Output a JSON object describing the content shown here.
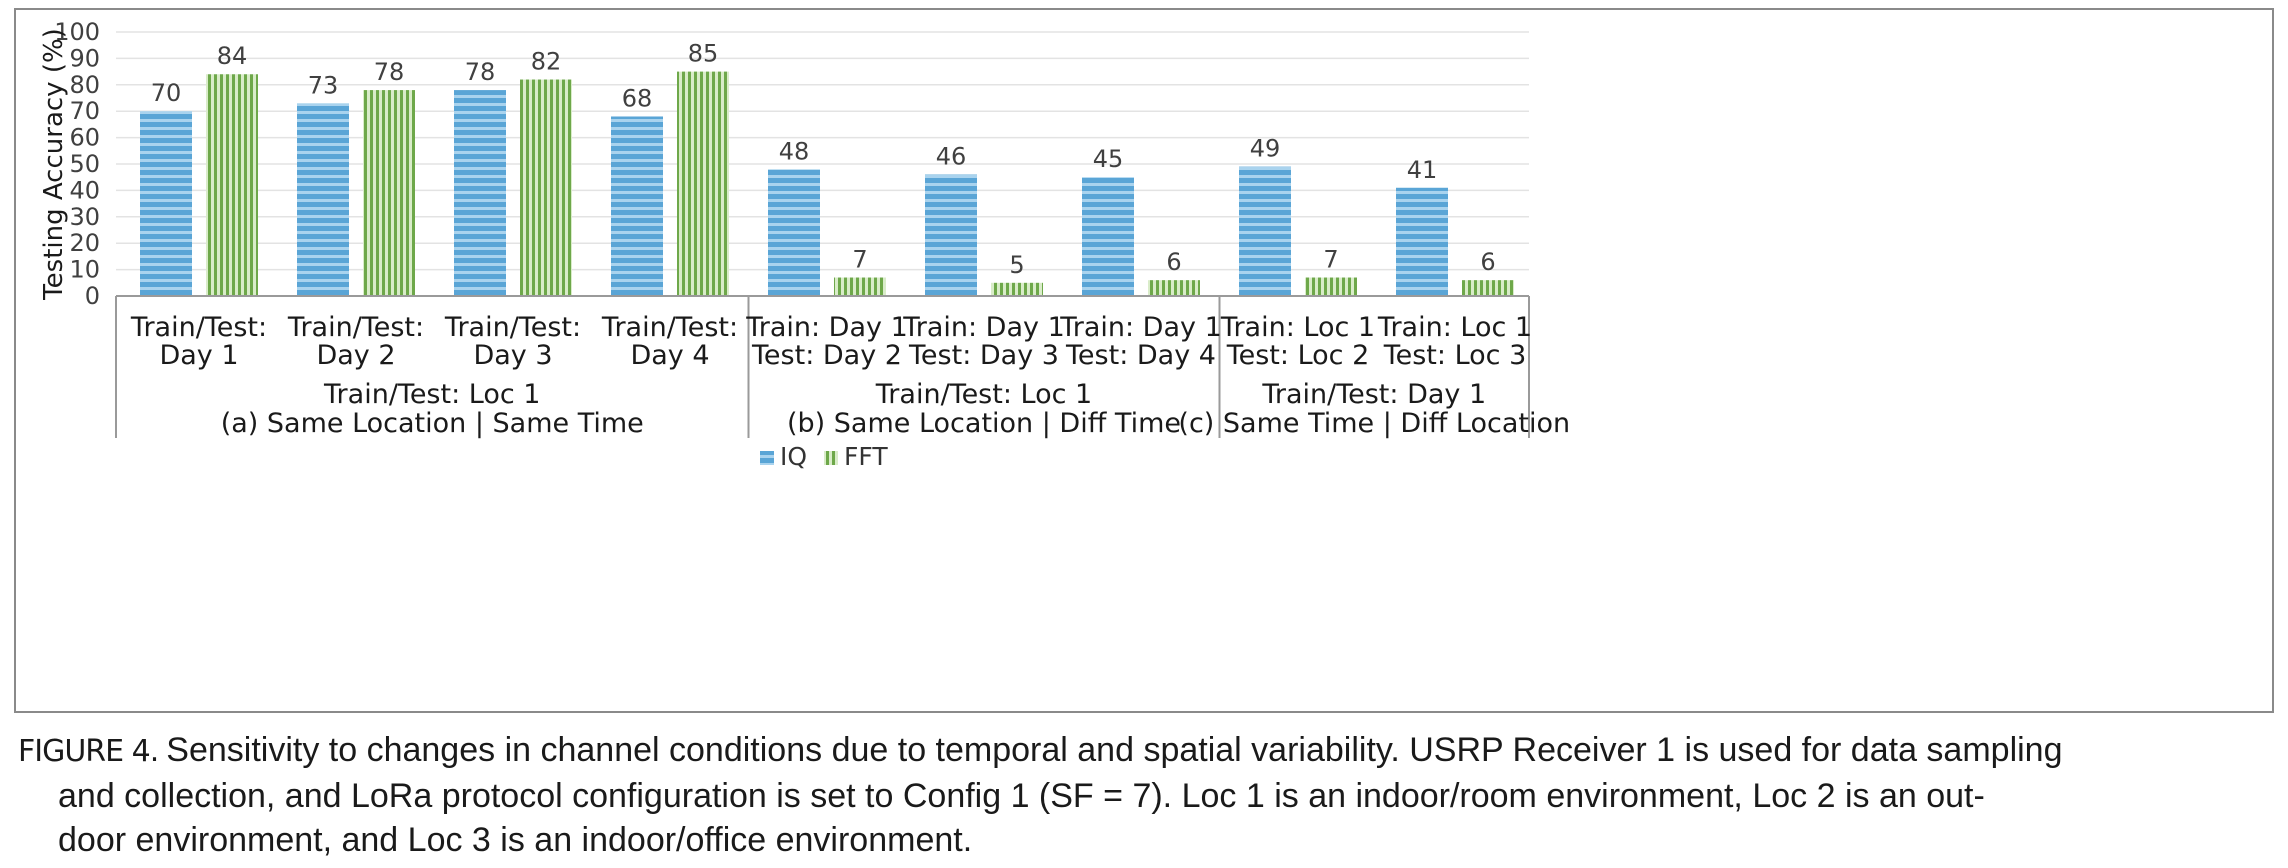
{
  "caption": {
    "label": "FIGURE 4.",
    "line1": "Sensitivity to changes in channel conditions due to temporal and spatial variability. USRP Receiver 1 is used for data sampling",
    "line2": "and collection, and LoRa protocol configuration is set to Config 1 (SF = 7). Loc 1 is an indoor/room environment, Loc 2 is an out-",
    "line3": "door environment, and Loc 3 is an indoor/office environment."
  },
  "chart_data": {
    "type": "bar",
    "ylabel": "Testing Accuracy (%)",
    "xlabel": "",
    "ylim": [
      0,
      100
    ],
    "yticks": [
      0,
      10,
      20,
      30,
      40,
      50,
      60,
      70,
      80,
      90,
      100
    ],
    "grid": true,
    "legend": "bottom-center",
    "categories": [
      [
        "Train/Test:",
        "Day 1"
      ],
      [
        "Train/Test:",
        "Day 2"
      ],
      [
        "Train/Test:",
        "Day 3"
      ],
      [
        "Train/Test:",
        "Day 4"
      ],
      [
        "Train: Day 1",
        "Test: Day 2"
      ],
      [
        "Train: Day 1",
        "Test: Day 3"
      ],
      [
        "Train: Day 1",
        "Test: Day 4"
      ],
      [
        "Train: Loc 1",
        "Test: Loc 2"
      ],
      [
        "Train: Loc 1",
        "Test: Loc 3"
      ]
    ],
    "groups": [
      {
        "lines": [
          "Train/Test: Loc 1",
          "(a) Same Location | Same Time"
        ],
        "start": 0,
        "end": 3
      },
      {
        "lines": [
          "Train/Test: Loc 1",
          "(b) Same Location | Diff Time"
        ],
        "start": 4,
        "end": 6
      },
      {
        "lines": [
          "Train/Test: Day 1",
          "(c) Same Time | Diff Location"
        ],
        "start": 7,
        "end": 8
      }
    ],
    "series": [
      {
        "name": "IQ",
        "color": "#5aa5d6",
        "values": [
          70,
          73,
          78,
          68,
          48,
          46,
          45,
          49,
          41
        ]
      },
      {
        "name": "FFT",
        "color": "#6ea84a",
        "values": [
          84,
          78,
          82,
          85,
          7,
          5,
          6,
          7,
          6
        ]
      }
    ]
  }
}
